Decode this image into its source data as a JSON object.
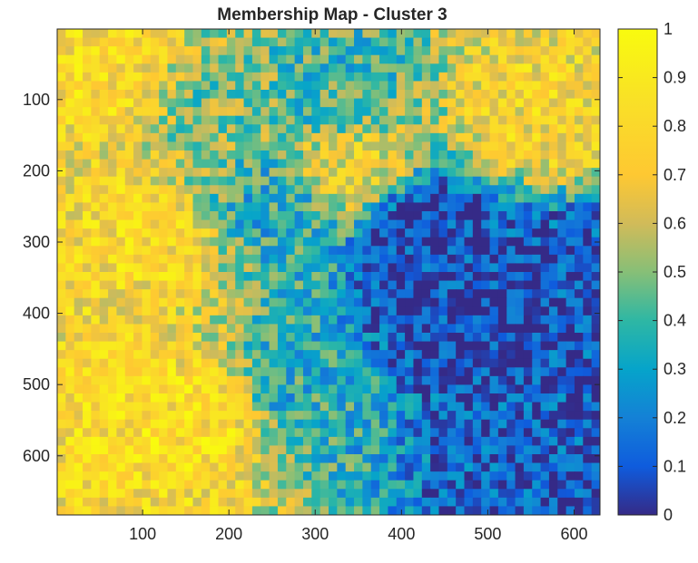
{
  "chart_data": {
    "type": "heatmap",
    "title": "Membership Map - Cluster 3",
    "x_range": [
      1,
      630
    ],
    "y_range": [
      1,
      683
    ],
    "x_ticks": [
      100,
      200,
      300,
      400,
      500,
      600
    ],
    "y_ticks": [
      100,
      200,
      300,
      400,
      500,
      600
    ],
    "y_direction": "reversed",
    "colormap": "parula",
    "colorbar": {
      "location": "right",
      "min": 0,
      "max": 1,
      "ticks": [
        "0",
        "0.1",
        "0.2",
        "0.3",
        "0.4",
        "0.5",
        "0.6",
        "0.7",
        "0.8",
        "0.9",
        "1"
      ]
    },
    "grid": false,
    "membership_trend": [
      {
        "x": 50,
        "y": 50,
        "value": 0.8
      },
      {
        "x": 100,
        "y": 300,
        "value": 0.78
      },
      {
        "x": 150,
        "y": 550,
        "value": 0.82
      },
      {
        "x": 200,
        "y": 100,
        "value": 0.5
      },
      {
        "x": 260,
        "y": 250,
        "value": 0.35
      },
      {
        "x": 300,
        "y": 500,
        "value": 0.35
      },
      {
        "x": 320,
        "y": 90,
        "value": 0.4
      },
      {
        "x": 340,
        "y": 200,
        "value": 0.7
      },
      {
        "x": 420,
        "y": 280,
        "value": 0.05
      },
      {
        "x": 450,
        "y": 420,
        "value": 0.05
      },
      {
        "x": 560,
        "y": 120,
        "value": 0.75
      },
      {
        "x": 580,
        "y": 350,
        "value": 0.08
      },
      {
        "x": 560,
        "y": 600,
        "value": 0.1
      }
    ]
  }
}
